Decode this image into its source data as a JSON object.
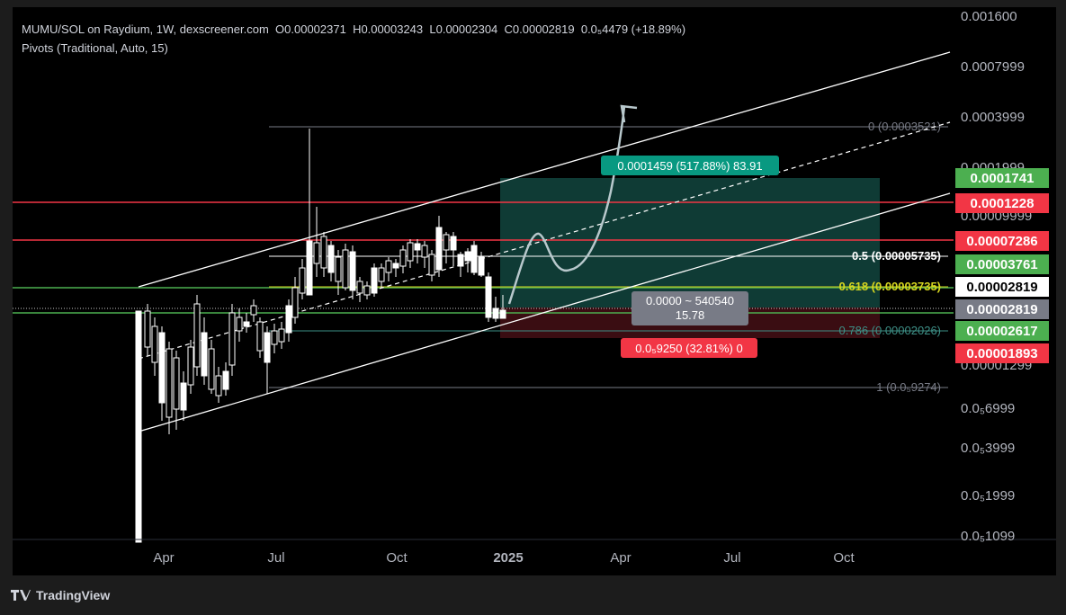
{
  "header": {
    "symbol_line": "MUMU/SOL on Raydium, 1W, dexscreener.com",
    "open_label": "O",
    "open": "0.00002371",
    "high_label": "H",
    "high": "0.00003243",
    "low_label": "L",
    "low": "0.00002304",
    "close_label": "C",
    "close": "0.00002819",
    "change": "0.0₅4479 (+18.89%)",
    "indicator": "Pivots (Traditional, Auto, 15)"
  },
  "branding": {
    "name": "TradingView"
  },
  "colors": {
    "up": "#ffffff",
    "down": "#ffffff",
    "pivot_red": "#f23645",
    "pivot_green": "#4caf50",
    "profit_zone": "#0f3b35",
    "loss_zone": "#3a0d12",
    "accent_teal": "#089981"
  },
  "chart_data": {
    "type": "candlestick",
    "y_scale": "log",
    "y_tick_labels": [
      "0.001600",
      "0.0007999",
      "0.0003999",
      "0.0001999",
      "0.00009999",
      "0.00001299",
      "0.0₅6999",
      "0.0₅3999",
      "0.0₅1999",
      "0.0₅1099"
    ],
    "x_tick_labels": [
      "Apr",
      "Jul",
      "Oct",
      "2025",
      "Apr",
      "Jul",
      "Oct"
    ],
    "price_labels": [
      {
        "value": "0.0001741",
        "color": "#4caf50"
      },
      {
        "value": "0.0001228",
        "color": "#f23645"
      },
      {
        "value": "0.00007286",
        "color": "#f23645"
      },
      {
        "value": "0.00003761",
        "color": "#4caf50"
      },
      {
        "value": "0.00002819",
        "color": "#ffffff"
      },
      {
        "value": "0.00002819",
        "color": "#787b86"
      },
      {
        "value": "0.00002617",
        "color": "#4caf50"
      },
      {
        "value": "0.00001893",
        "color": "#f23645"
      }
    ],
    "fib_levels": [
      {
        "label": "0 (0.0003521)",
        "ratio": 0
      },
      {
        "label": "0.5 (0.00005735)",
        "ratio": 0.5
      },
      {
        "label": "0.618 (0.00003735)",
        "ratio": 0.618
      },
      {
        "label": "0.786 (0.00002026)",
        "ratio": 0.786
      },
      {
        "label": "1 (0.0₅9274)",
        "ratio": 1
      }
    ],
    "position_tool": {
      "profit_label": "0.0001459 (517.88%) 83.91",
      "loss_label": "0.0₅9250 (32.81%) 0",
      "center_label_1": "0.0000 ~ 540540",
      "center_label_2": "15.78"
    }
  }
}
